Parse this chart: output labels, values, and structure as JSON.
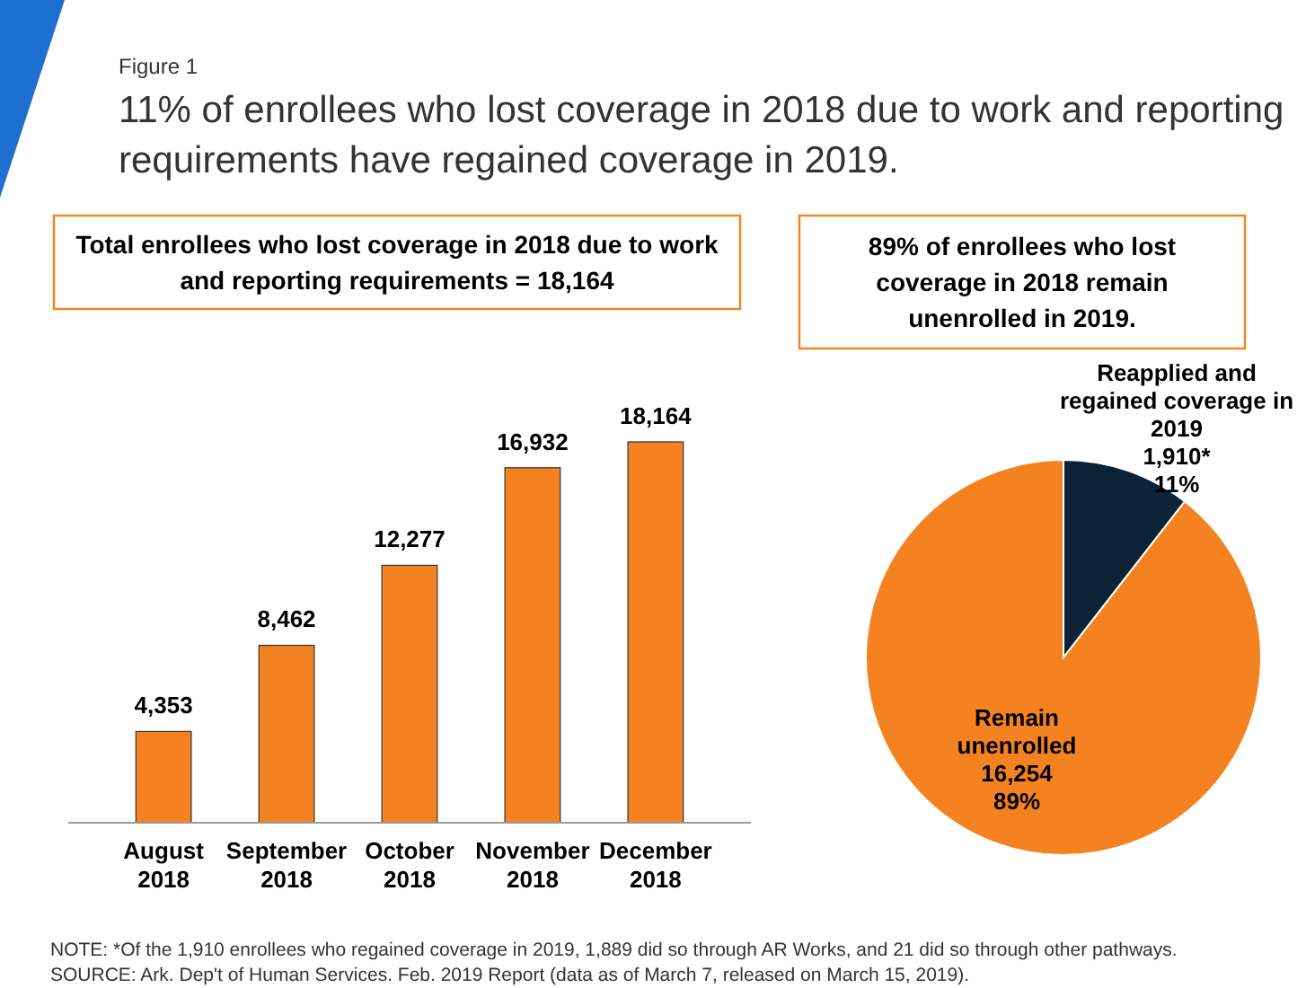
{
  "chart_data": [
    {
      "type": "bar",
      "title": "Total enrollees who lost coverage in 2018 due to work and reporting requirements = 18,164",
      "categories": [
        "August 2018",
        "September 2018",
        "October 2018",
        "November 2018",
        "December 2018"
      ],
      "values": [
        4353,
        8462,
        12277,
        16932,
        18164
      ],
      "value_labels": [
        "4,353",
        "8,462",
        "12,277",
        "16,932",
        "18,164"
      ],
      "color": "#f58220",
      "annotations": [
        "Figure 1",
        "11% of enrollees who lost coverage in 2018 due to work and reporting requirements have regained coverage in 2019.",
        "NOTE: *Of the 1,910 enrollees who regained coverage in 2019, 1,889 did so through AR Works, and 21 did so through other pathways.",
        "SOURCE: Ark. Dep't of Human Services. Feb. 2019 Report (data as of March 7, released on March 15, 2019)."
      ]
    },
    {
      "type": "pie",
      "title": "89% of enrollees who lost coverage in 2018 remain unenrolled in 2019.",
      "categories": [
        "Reapplied and regained coverage in 2019",
        "Remain unenrolled"
      ],
      "values": [
        1910,
        16254
      ],
      "value_labels": [
        "1,910*\n11%",
        "16,254\n89%"
      ],
      "colors": [
        "#0c2236",
        "#f58220"
      ]
    }
  ]
}
